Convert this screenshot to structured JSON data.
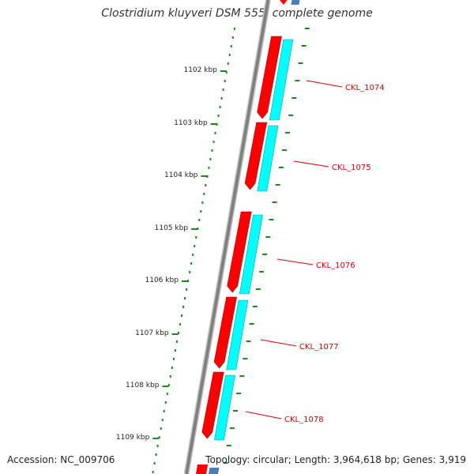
{
  "title": "Clostridium kluyveri DSM 555, complete genome",
  "footer": {
    "accession_label": "Accession:",
    "accession": "NC_009706",
    "topology_label": "Topology:",
    "topology": "circular;",
    "length_label": "Length:",
    "length": "3,964,618 bp;",
    "genes_label": "Genes:",
    "genes": "3,919"
  },
  "ticks": [
    "1102 kbp",
    "1103 kbp",
    "1104 kbp",
    "1105 kbp",
    "1106 kbp",
    "1107 kbp",
    "1108 kbp",
    "1109 kbp"
  ],
  "genes": [
    {
      "label": "CKL_1074"
    },
    {
      "label": "CKL_1075"
    },
    {
      "label": "CKL_1076"
    },
    {
      "label": "CKL_1077"
    },
    {
      "label": "CKL_1078"
    }
  ],
  "colors": {
    "backbone": "#808080",
    "gene_red": "#ff0000",
    "gene_cyan": "#00ffff",
    "tick_green": "#1a8a1a",
    "label_red": "#e00000",
    "edge_blue": "#4a7fb5"
  }
}
